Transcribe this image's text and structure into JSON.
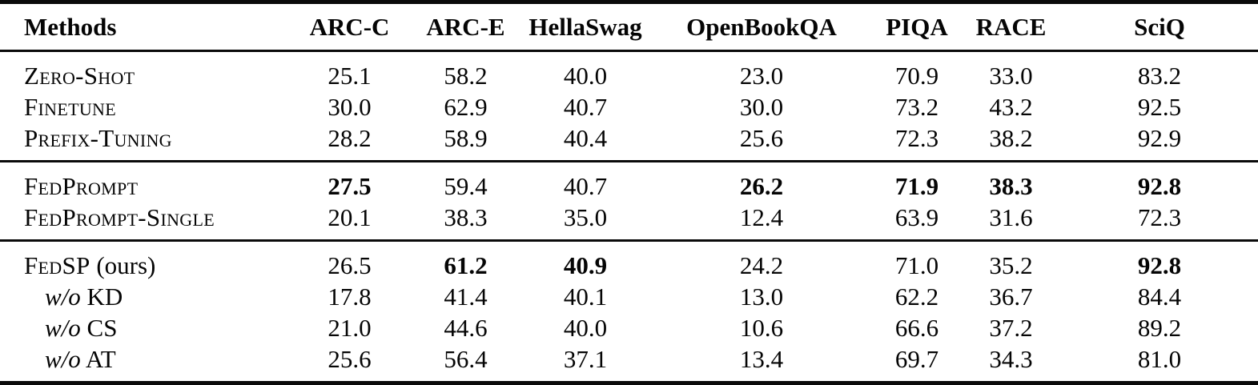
{
  "page": {
    "background_color": "#ffffff",
    "text_color": "#050505",
    "rule_color": "#0a0a0a"
  },
  "table": {
    "columns": [
      "Methods",
      "ARC-C",
      "ARC-E",
      "HellaSwag",
      "OpenBookQA",
      "PIQA",
      "RACE",
      "SciQ"
    ],
    "sections": [
      {
        "rows": [
          {
            "label_sc": "Zero-Shot",
            "label_it": "",
            "label_plain": "",
            "indent": false,
            "values": [
              "25.1",
              "58.2",
              "40.0",
              "23.0",
              "70.9",
              "33.0",
              "83.2"
            ],
            "bold": [
              false,
              false,
              false,
              false,
              false,
              false,
              false
            ]
          },
          {
            "label_sc": "Finetune",
            "label_it": "",
            "label_plain": "",
            "indent": false,
            "values": [
              "30.0",
              "62.9",
              "40.7",
              "30.0",
              "73.2",
              "43.2",
              "92.5"
            ],
            "bold": [
              false,
              false,
              false,
              false,
              false,
              false,
              false
            ]
          },
          {
            "label_sc": "Prefix-Tuning",
            "label_it": "",
            "label_plain": "",
            "indent": false,
            "values": [
              "28.2",
              "58.9",
              "40.4",
              "25.6",
              "72.3",
              "38.2",
              "92.9"
            ],
            "bold": [
              false,
              false,
              false,
              false,
              false,
              false,
              false
            ]
          }
        ]
      },
      {
        "rows": [
          {
            "label_sc": "FedPrompt",
            "label_it": "",
            "label_plain": "",
            "indent": false,
            "values": [
              "27.5",
              "59.4",
              "40.7",
              "26.2",
              "71.9",
              "38.3",
              "92.8"
            ],
            "bold": [
              true,
              false,
              false,
              true,
              true,
              true,
              true
            ]
          },
          {
            "label_sc": "FedPrompt-Single",
            "label_it": "",
            "label_plain": "",
            "indent": false,
            "values": [
              "20.1",
              "38.3",
              "35.0",
              "12.4",
              "63.9",
              "31.6",
              "72.3"
            ],
            "bold": [
              false,
              false,
              false,
              false,
              false,
              false,
              false
            ]
          }
        ]
      },
      {
        "rows": [
          {
            "label_sc": "FedSP",
            "label_it": "",
            "label_plain": " (ours)",
            "indent": false,
            "values": [
              "26.5",
              "61.2",
              "40.9",
              "24.2",
              "71.0",
              "35.2",
              "92.8"
            ],
            "bold": [
              false,
              true,
              true,
              false,
              false,
              false,
              true
            ]
          },
          {
            "label_sc": "",
            "label_it": "w/o",
            "label_plain": " KD",
            "indent": true,
            "values": [
              "17.8",
              "41.4",
              "40.1",
              "13.0",
              "62.2",
              "36.7",
              "84.4"
            ],
            "bold": [
              false,
              false,
              false,
              false,
              false,
              false,
              false
            ]
          },
          {
            "label_sc": "",
            "label_it": "w/o",
            "label_plain": " CS",
            "indent": true,
            "values": [
              "21.0",
              "44.6",
              "40.0",
              "10.6",
              "66.6",
              "37.2",
              "89.2"
            ],
            "bold": [
              false,
              false,
              false,
              false,
              false,
              false,
              false
            ]
          },
          {
            "label_sc": "",
            "label_it": "w/o",
            "label_plain": " AT",
            "indent": true,
            "values": [
              "25.6",
              "56.4",
              "37.1",
              "13.4",
              "69.7",
              "34.3",
              "81.0"
            ],
            "bold": [
              false,
              false,
              false,
              false,
              false,
              false,
              false
            ]
          }
        ]
      }
    ]
  }
}
